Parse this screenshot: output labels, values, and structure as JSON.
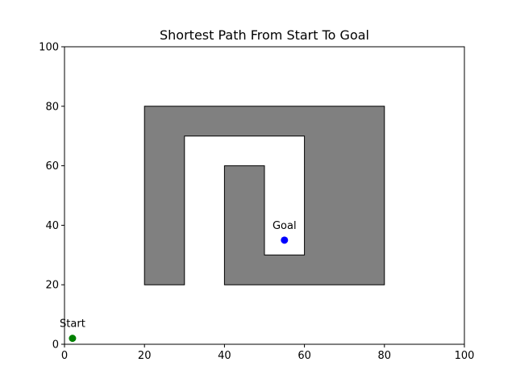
{
  "chart_data": {
    "type": "scatter",
    "title": "Shortest Path From Start To Goal",
    "xlabel": "",
    "ylabel": "",
    "xlim": [
      0,
      100
    ],
    "ylim": [
      0,
      100
    ],
    "xticks": [
      "0",
      "20",
      "40",
      "60",
      "80",
      "100"
    ],
    "yticks": [
      "0",
      "20",
      "40",
      "60",
      "80",
      "100"
    ],
    "grid": false,
    "obstacle": {
      "fill": "#808080",
      "stroke": "#000000",
      "vertices": [
        [
          20,
          20
        ],
        [
          30,
          20
        ],
        [
          30,
          70
        ],
        [
          60,
          70
        ],
        [
          60,
          30
        ],
        [
          50,
          30
        ],
        [
          50,
          60
        ],
        [
          40,
          60
        ],
        [
          40,
          20
        ],
        [
          80,
          20
        ],
        [
          80,
          80
        ],
        [
          20,
          80
        ]
      ]
    },
    "points": [
      {
        "name": "start",
        "label": "Start",
        "x": 2,
        "y": 2,
        "color": "#008000"
      },
      {
        "name": "goal",
        "label": "Goal",
        "x": 55,
        "y": 35,
        "color": "#0000ff"
      }
    ]
  }
}
